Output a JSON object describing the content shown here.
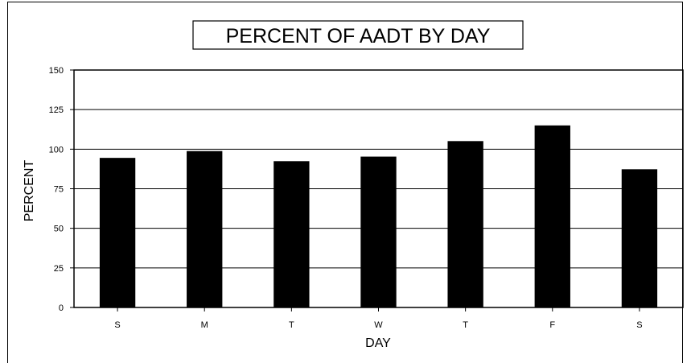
{
  "chart_data": {
    "type": "bar",
    "title": "PERCENT OF AADT BY DAY",
    "xlabel": "DAY",
    "ylabel": "PERCENT",
    "categories": [
      "S",
      "M",
      "T",
      "W",
      "T",
      "F",
      "S"
    ],
    "values": [
      94.5,
      98.8,
      92.4,
      95.3,
      105.1,
      115.0,
      87.3
    ],
    "ylim": [
      0,
      150
    ],
    "yticks": [
      "0",
      "25",
      "50",
      "75",
      "100",
      "125",
      "150"
    ],
    "grid": true,
    "legend": "none",
    "colors": {
      "bar": "#000000",
      "grid": "#000000",
      "background": "#ffffff"
    }
  }
}
